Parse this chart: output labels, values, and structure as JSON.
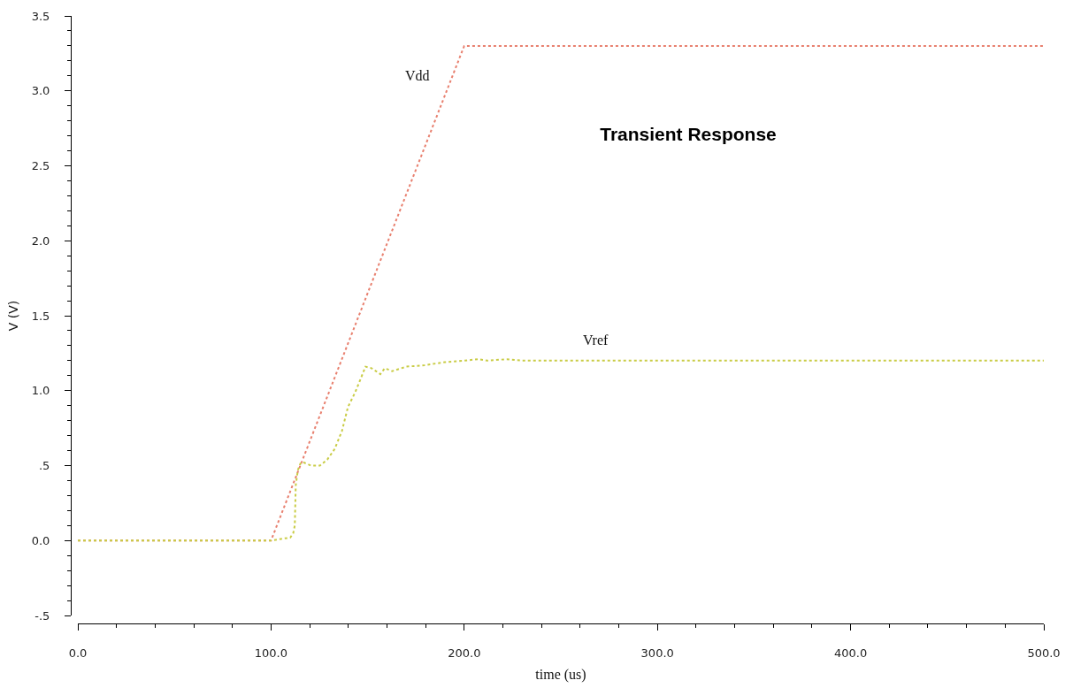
{
  "chart_data": {
    "type": "line",
    "title": "Transient Response",
    "xlabel": "time (us)",
    "ylabel": "V (V)",
    "line_style": "dotted",
    "xlim": [
      0,
      500
    ],
    "xticks": [
      {
        "value": 0,
        "label": "0.0"
      },
      {
        "value": 20,
        "label": null
      },
      {
        "value": 40,
        "label": null
      },
      {
        "value": 60,
        "label": null
      },
      {
        "value": 80,
        "label": null
      },
      {
        "value": 100,
        "label": "100.0"
      },
      {
        "value": 120,
        "label": null
      },
      {
        "value": 140,
        "label": null
      },
      {
        "value": 160,
        "label": null
      },
      {
        "value": 180,
        "label": null
      },
      {
        "value": 200,
        "label": "200.0"
      },
      {
        "value": 220,
        "label": null
      },
      {
        "value": 240,
        "label": null
      },
      {
        "value": 260,
        "label": null
      },
      {
        "value": 280,
        "label": null
      },
      {
        "value": 300,
        "label": "300.0"
      },
      {
        "value": 320,
        "label": null
      },
      {
        "value": 340,
        "label": null
      },
      {
        "value": 360,
        "label": null
      },
      {
        "value": 380,
        "label": null
      },
      {
        "value": 400,
        "label": "400.0"
      },
      {
        "value": 420,
        "label": null
      },
      {
        "value": 440,
        "label": null
      },
      {
        "value": 460,
        "label": null
      },
      {
        "value": 480,
        "label": null
      },
      {
        "value": 500,
        "label": "500.0"
      }
    ],
    "ylim": [
      -0.5,
      3.5
    ],
    "yticks": [
      {
        "value": -0.5,
        "label": "-.5"
      },
      {
        "value": -0.4,
        "label": null
      },
      {
        "value": -0.3,
        "label": null
      },
      {
        "value": -0.2,
        "label": null
      },
      {
        "value": -0.1,
        "label": null
      },
      {
        "value": 0,
        "label": "0.0"
      },
      {
        "value": 0.1,
        "label": null
      },
      {
        "value": 0.2,
        "label": null
      },
      {
        "value": 0.3,
        "label": null
      },
      {
        "value": 0.4,
        "label": null
      },
      {
        "value": 0.5,
        "label": ".5"
      },
      {
        "value": 0.6,
        "label": null
      },
      {
        "value": 0.7,
        "label": null
      },
      {
        "value": 0.8,
        "label": null
      },
      {
        "value": 0.9,
        "label": null
      },
      {
        "value": 1.0,
        "label": "1.0"
      },
      {
        "value": 1.1,
        "label": null
      },
      {
        "value": 1.2,
        "label": null
      },
      {
        "value": 1.3,
        "label": null
      },
      {
        "value": 1.4,
        "label": null
      },
      1.5,
      {
        "value": 1.6,
        "label": null
      },
      {
        "value": 1.7,
        "label": null
      },
      {
        "value": 1.8,
        "label": null
      },
      {
        "value": 1.9,
        "label": null
      },
      {
        "value": 2.0,
        "label": "2.0"
      },
      {
        "value": 2.1,
        "label": null
      },
      {
        "value": 2.2,
        "label": null
      },
      {
        "value": 2.3,
        "label": null
      },
      {
        "value": 2.4,
        "label": null
      },
      2.5,
      {
        "value": 2.6,
        "label": null
      },
      {
        "value": 2.7,
        "label": null
      },
      {
        "value": 2.8,
        "label": null
      },
      {
        "value": 2.9,
        "label": null
      },
      {
        "value": 3.0,
        "label": "3.0"
      },
      {
        "value": 3.1,
        "label": null
      },
      {
        "value": 3.2,
        "label": null
      },
      {
        "value": 3.3,
        "label": null
      },
      {
        "value": 3.4,
        "label": null
      },
      3.5
    ],
    "series": [
      {
        "name": "Vdd",
        "color": "#e8806f",
        "x": [
          0,
          100,
          200,
          500
        ],
        "values": [
          0,
          0,
          3.3,
          3.3
        ]
      },
      {
        "name": "Vref",
        "color": "#c9cc45",
        "x": [
          0,
          100,
          105,
          110,
          111.5,
          112.3,
          112.8,
          113.9,
          115.4,
          117,
          120.7,
          125.3,
          129.1,
          132.9,
          136.7,
          139.8,
          143.6,
          148.9,
          152,
          155.5,
          156.6,
          158.9,
          162.7,
          170,
          179.5,
          190,
          200,
          207,
          212,
          222,
          230,
          500
        ],
        "values": [
          0,
          0,
          0.01,
          0.02,
          0.05,
          0.1,
          0.37,
          0.47,
          0.52,
          0.52,
          0.5,
          0.5,
          0.54,
          0.61,
          0.73,
          0.89,
          0.99,
          1.16,
          1.15,
          1.12,
          1.11,
          1.15,
          1.13,
          1.16,
          1.17,
          1.19,
          1.2,
          1.21,
          1.2,
          1.21,
          1.2,
          1.2
        ]
      }
    ]
  }
}
